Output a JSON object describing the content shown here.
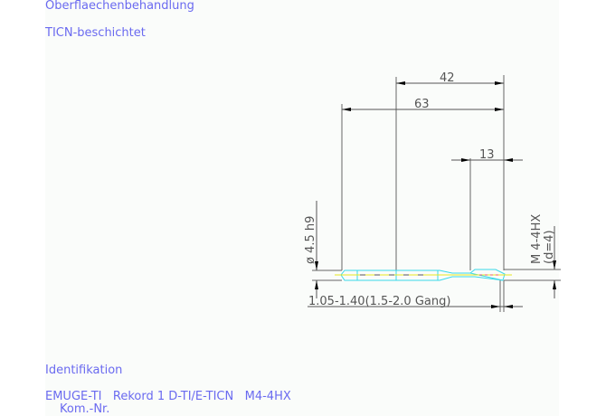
{
  "header": {
    "surface_label": "Oberflaechenbehandlung",
    "surface_value": "TICN-beschichtet"
  },
  "drawing": {
    "dim_42": "42",
    "dim_63": "63",
    "dim_13": "13",
    "dim_diameter": "ø 4.5 h9",
    "dim_thread": "M 4-4HX",
    "dim_thread_d": "(d=4)",
    "dim_bottom": "1.05-1.40(1.5-2.0 Gang)"
  },
  "footer": {
    "id_label": "Identifikation",
    "id_value": "EMUGE-TI   Rekord 1 D-TI/E-TICN   M4-4HX",
    "kom_label": "Kom.-Nr."
  },
  "colors": {
    "text": "#6a6af0",
    "tool": "#3ad8e8",
    "centerline": "#e8e820",
    "dims": "#555555"
  }
}
